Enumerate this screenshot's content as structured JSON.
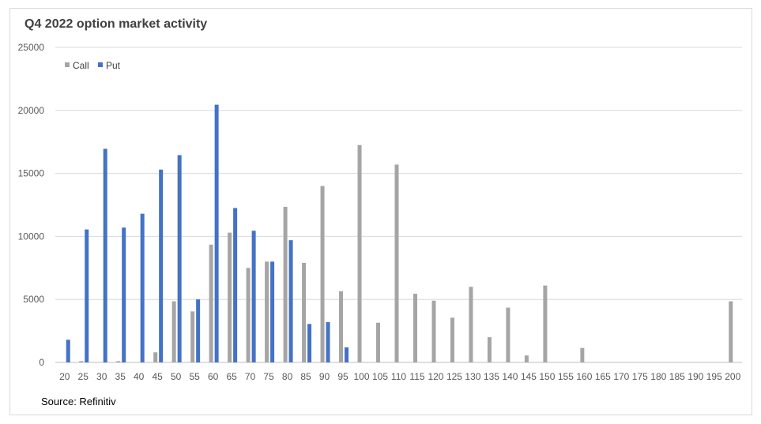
{
  "chart_data": {
    "type": "bar",
    "title": "Q4 2022 option market activity",
    "source": "Source: Refinitiv",
    "xlabel": "",
    "ylabel": "",
    "ylim": [
      0,
      25000
    ],
    "yticks": [
      0,
      5000,
      10000,
      15000,
      20000,
      25000
    ],
    "grid": true,
    "legend_position": "top-left",
    "categories": [
      "20",
      "25",
      "30",
      "35",
      "40",
      "45",
      "50",
      "55",
      "60",
      "65",
      "70",
      "75",
      "80",
      "85",
      "90",
      "95",
      "100",
      "105",
      "110",
      "115",
      "120",
      "125",
      "130",
      "135",
      "140",
      "145",
      "150",
      "155",
      "160",
      "165",
      "170",
      "175",
      "180",
      "185",
      "190",
      "195",
      "200"
    ],
    "series": [
      {
        "name": "Call",
        "color": "#a5a5a5",
        "values": [
          0,
          100,
          0,
          100,
          0,
          800,
          4850,
          4050,
          9350,
          10300,
          7500,
          8000,
          12350,
          7900,
          14000,
          5650,
          17250,
          3150,
          15700,
          5450,
          4900,
          3550,
          6000,
          2000,
          4350,
          550,
          6100,
          0,
          1150,
          0,
          0,
          0,
          0,
          0,
          0,
          0,
          4850
        ]
      },
      {
        "name": "Put",
        "color": "#4472c4",
        "values": [
          1800,
          10550,
          16950,
          10700,
          11800,
          15300,
          16450,
          5000,
          20450,
          12250,
          10450,
          8000,
          9700,
          3050,
          3200,
          1200,
          0,
          0,
          0,
          0,
          0,
          0,
          0,
          0,
          0,
          0,
          0,
          0,
          0,
          0,
          0,
          0,
          0,
          0,
          0,
          0,
          0
        ]
      }
    ]
  }
}
